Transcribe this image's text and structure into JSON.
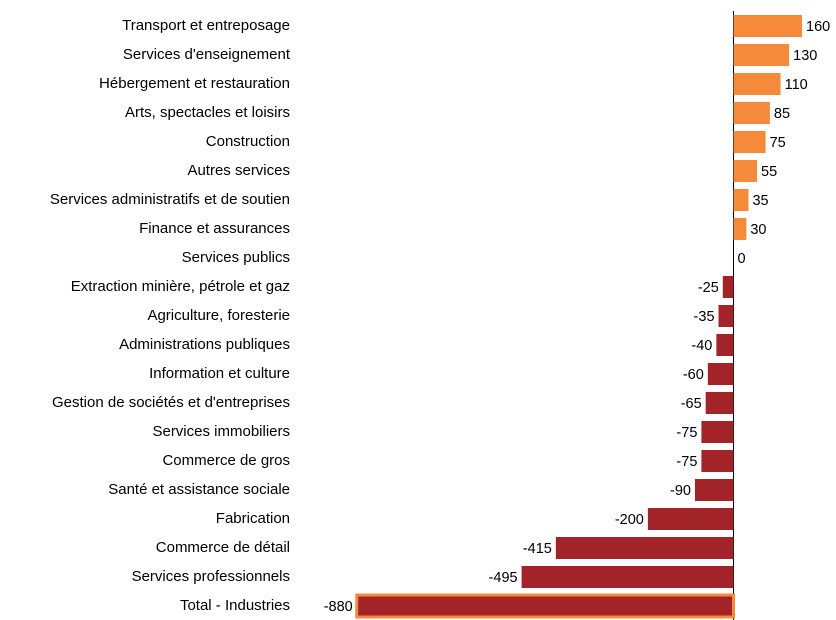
{
  "chart_data": {
    "type": "bar",
    "orientation": "horizontal",
    "categories": [
      "Transport et entreposage",
      "Services d'enseignement",
      "Hébergement et restauration",
      "Arts, spectacles et loisirs",
      "Construction",
      "Autres services",
      "Services administratifs et de soutien",
      "Finance et assurances",
      "Services publics",
      "Extraction minière, pétrole et gaz",
      "Agriculture, foresterie",
      "Administrations publiques",
      "Information et culture",
      "Gestion de sociétés et d'entreprises",
      "Services immobiliers",
      "Commerce de gros",
      "Santé et assistance sociale",
      "Fabrication",
      "Commerce de détail",
      "Services professionnels",
      "Total - Industries"
    ],
    "values": [
      160,
      130,
      110,
      85,
      75,
      55,
      35,
      30,
      0,
      -25,
      -35,
      -40,
      -60,
      -65,
      -75,
      -75,
      -90,
      -200,
      -415,
      -495,
      -880
    ],
    "colors": {
      "positive": "#f58a3a",
      "negative": "#a22428"
    },
    "highlight": "Total - Industries",
    "highlight_color": "#f58a3a"
  }
}
